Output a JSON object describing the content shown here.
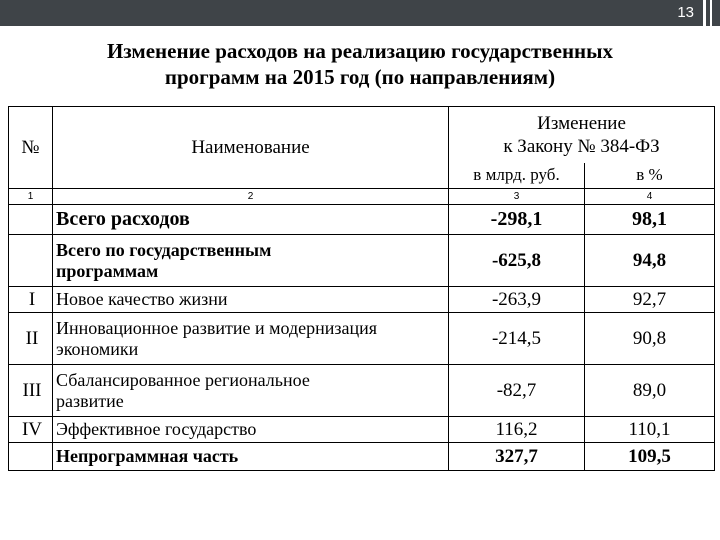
{
  "page_number": "13",
  "title_line1": "Изменение расходов на реализацию государственных",
  "title_line2": "программ на 2015 год (по направлениям)",
  "header": {
    "no": "№",
    "name": "Наименование",
    "change_line1": "Изменение",
    "change_line2": "к Закону № 384-ФЗ",
    "unit_bln": "в млрд. руб.",
    "unit_pct": "в %",
    "idx1": "1",
    "idx2": "2",
    "idx3": "3",
    "idx4": "4"
  },
  "rows": [
    {
      "no": "",
      "name1": "Всего расходов",
      "name2": "",
      "bln": "-298,1",
      "pct": "98,1"
    },
    {
      "no": "",
      "name1": "Всего по государственным",
      "name2": "программам",
      "bln": "-625,8",
      "pct": "94,8"
    },
    {
      "no": "I",
      "name1": "Новое качество жизни",
      "name2": "",
      "bln": "-263,9",
      "pct": "92,7"
    },
    {
      "no": "II",
      "name1": "Инновационное развитие и модернизация",
      "name2": "экономики",
      "bln": "-214,5",
      "pct": "90,8"
    },
    {
      "no": "III",
      "name1": "Сбалансированное региональное",
      "name2": "развитие",
      "bln": "-82,7",
      "pct": "89,0"
    },
    {
      "no": "IV",
      "name1": "Эффективное государство",
      "name2": "",
      "bln": "116,2",
      "pct": "110,1"
    },
    {
      "no": "",
      "name1": "Непрограммная часть",
      "name2": "",
      "bln": "327,7",
      "pct": "109,5"
    }
  ]
}
